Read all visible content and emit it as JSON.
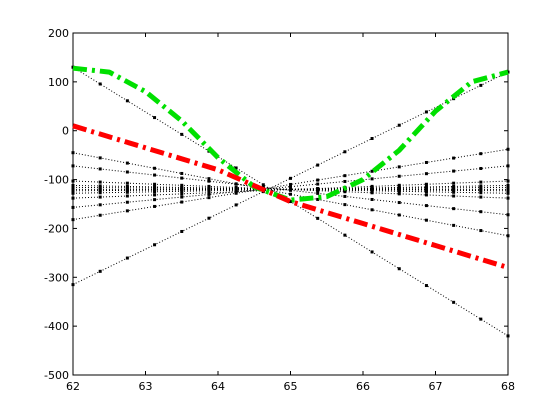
{
  "chart_data": {
    "type": "line",
    "title": "",
    "xlabel": "",
    "ylabel": "",
    "xlim": [
      62,
      68
    ],
    "ylim": [
      -500,
      200
    ],
    "xticks": [
      62,
      63,
      64,
      65,
      66,
      67,
      68
    ],
    "yticks": [
      -500,
      -400,
      -300,
      -200,
      -100,
      0,
      100,
      200
    ],
    "grid": false,
    "legend": "none",
    "dotted_lines": [
      {
        "x": [
          62,
          68
        ],
        "y": [
          -315,
          120
        ]
      },
      {
        "x": [
          62,
          68
        ],
        "y": [
          -182,
          -38
        ]
      },
      {
        "x": [
          62,
          68
        ],
        "y": [
          -157,
          -72
        ]
      },
      {
        "x": [
          62,
          68
        ],
        "y": [
          -138,
          -103
        ]
      },
      {
        "x": [
          62,
          68
        ],
        "y": [
          -128,
          -112
        ]
      },
      {
        "x": [
          62,
          68
        ],
        "y": [
          -123,
          -116
        ]
      },
      {
        "x": [
          62,
          68
        ],
        "y": [
          -120,
          -120
        ]
      },
      {
        "x": [
          62,
          68
        ],
        "y": [
          -116,
          -123
        ]
      },
      {
        "x": [
          62,
          68
        ],
        "y": [
          -112,
          -128
        ]
      },
      {
        "x": [
          62,
          68
        ],
        "y": [
          -103,
          -138
        ]
      },
      {
        "x": [
          62,
          68
        ],
        "y": [
          -72,
          -172
        ]
      },
      {
        "x": [
          62,
          68
        ],
        "y": [
          -45,
          -215
        ]
      },
      {
        "x": [
          62,
          68
        ],
        "y": [
          130,
          -420
        ]
      }
    ],
    "green_series": {
      "color": "#00e000",
      "x": [
        62,
        62.5,
        63,
        63.5,
        64,
        64.5,
        65,
        65.5,
        66,
        66.5,
        67,
        67.5,
        68
      ],
      "y": [
        128,
        120,
        80,
        20,
        -55,
        -115,
        -142,
        -135,
        -100,
        -40,
        40,
        100,
        120
      ]
    },
    "red_series": {
      "color": "#ff0000",
      "x": [
        62,
        63,
        64,
        65,
        66,
        67,
        68
      ],
      "y": [
        10,
        -35,
        -80,
        -145,
        -190,
        -235,
        -280
      ]
    }
  }
}
